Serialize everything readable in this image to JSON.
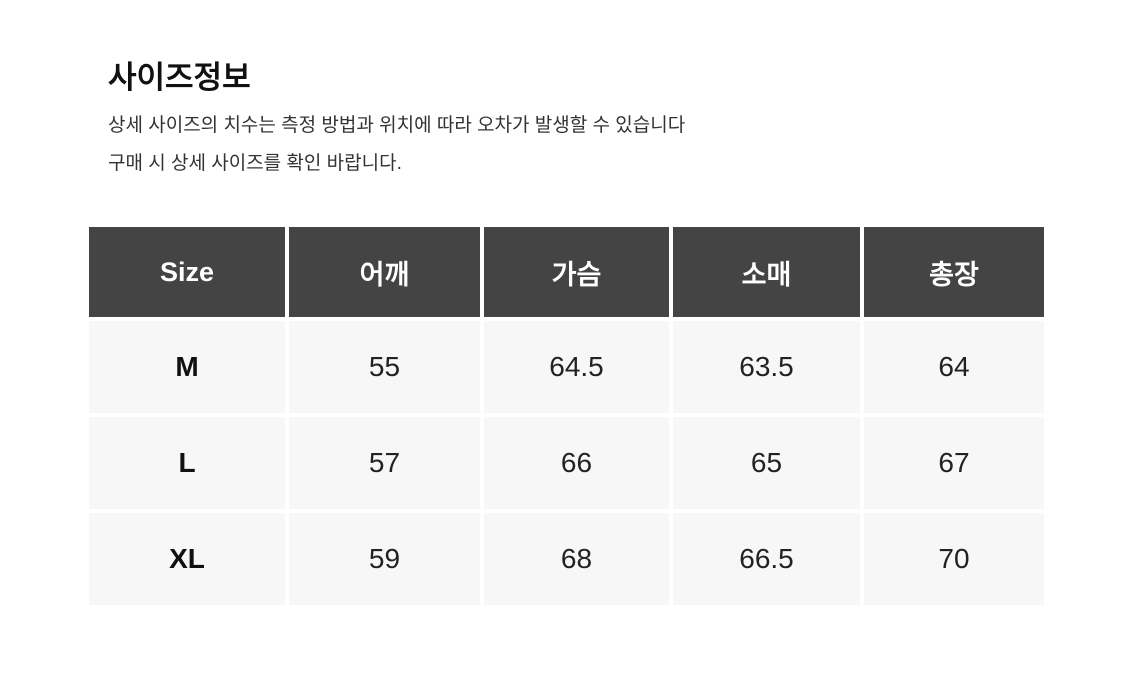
{
  "title": "사이즈정보",
  "description": [
    "상세 사이즈의 치수는 측정 방법과 위치에 따라 오차가 발생할 수 있습니다",
    "구매 시 상세 사이즈를 확인 바랍니다."
  ],
  "table": {
    "headers": [
      "Size",
      "어깨",
      "가슴",
      "소매",
      "총장"
    ],
    "rows": [
      [
        "M",
        "55",
        "64.5",
        "63.5",
        "64"
      ],
      [
        "L",
        "57",
        "66",
        "65",
        "67"
      ],
      [
        "XL",
        "59",
        "68",
        "66.5",
        "70"
      ]
    ]
  },
  "colors": {
    "header_bg": "#444444",
    "cell_bg": "#f7f7f7"
  }
}
